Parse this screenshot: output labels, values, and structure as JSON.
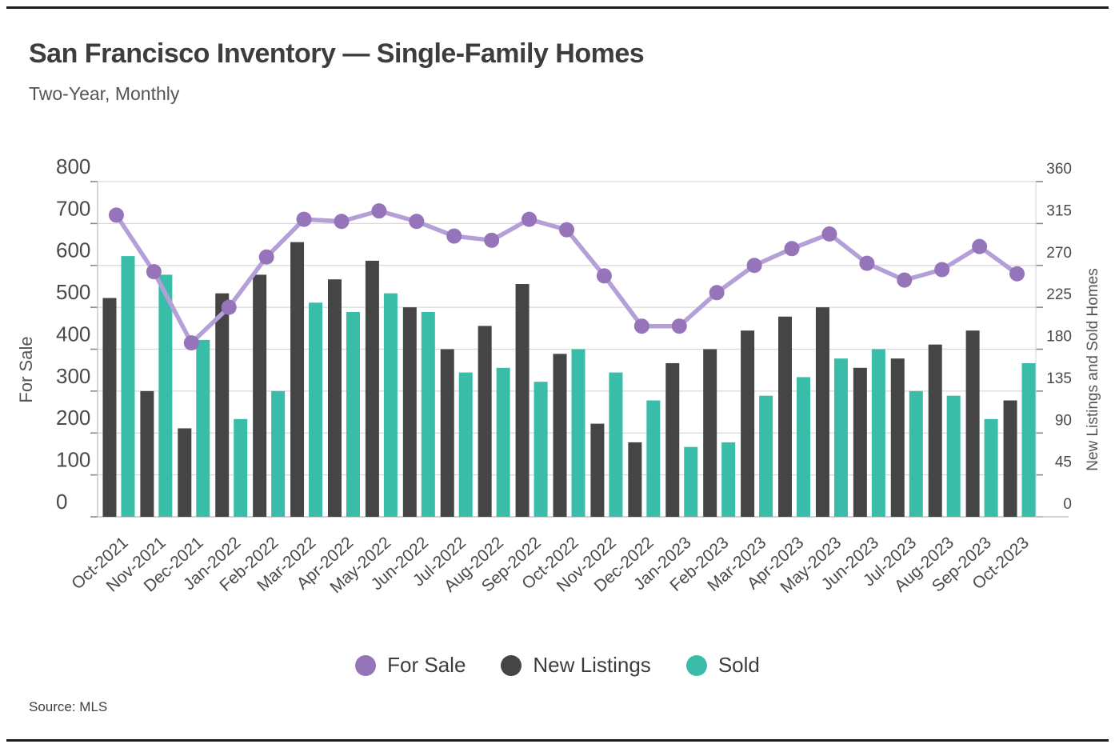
{
  "page": {
    "title": "San Francisco Inventory — Single-Family Homes",
    "subtitle": "Two-Year, Monthly",
    "source": "Source: MLS"
  },
  "legend": [
    {
      "label": "For Sale",
      "color": "#9674ba"
    },
    {
      "label": "New Listings",
      "color": "#454545"
    },
    {
      "label": "Sold",
      "color": "#39bda8"
    }
  ],
  "chart_data": {
    "type": "combo-bar-line",
    "categories": [
      "Oct-2021",
      "Nov-2021",
      "Dec-2021",
      "Jan-2022",
      "Feb-2022",
      "Mar-2022",
      "Apr-2022",
      "May-2022",
      "Jun-2022",
      "Jul-2022",
      "Aug-2022",
      "Sep-2022",
      "Oct-2022",
      "Nov-2022",
      "Dec-2022",
      "Jan-2023",
      "Feb-2023",
      "Mar-2023",
      "Apr-2023",
      "May-2023",
      "Jun-2023",
      "Jul-2023",
      "Aug-2023",
      "Sep-2023",
      "Oct-2023"
    ],
    "series": [
      {
        "name": "For Sale",
        "type": "line",
        "axis": "left",
        "color": "#9674ba",
        "line_color": "#b49fd8",
        "values": [
          720,
          585,
          415,
          500,
          620,
          710,
          705,
          730,
          705,
          670,
          660,
          710,
          685,
          575,
          455,
          455,
          535,
          600,
          640,
          675,
          605,
          565,
          590,
          645,
          580
        ]
      },
      {
        "name": "New Listings",
        "type": "bar",
        "axis": "right",
        "color": "#454545",
        "values": [
          235,
          135,
          95,
          240,
          260,
          295,
          255,
          275,
          225,
          180,
          205,
          250,
          175,
          100,
          80,
          165,
          180,
          200,
          215,
          225,
          160,
          170,
          185,
          200,
          125
        ]
      },
      {
        "name": "Sold",
        "type": "bar",
        "axis": "right",
        "color": "#39bda8",
        "values": [
          280,
          260,
          190,
          105,
          135,
          230,
          220,
          240,
          220,
          155,
          160,
          145,
          180,
          155,
          125,
          75,
          80,
          130,
          150,
          170,
          180,
          135,
          130,
          105,
          165
        ]
      }
    ],
    "left_axis": {
      "label": "For Sale",
      "min": 0,
      "max": 800,
      "tick_step": 100,
      "ticks": [
        0,
        100,
        200,
        300,
        400,
        500,
        600,
        700,
        800
      ]
    },
    "right_axis": {
      "label": "New Listings and Sold Homes",
      "min": 0,
      "max": 360,
      "tick_step": 45,
      "ticks": [
        0,
        45,
        90,
        135,
        180,
        225,
        270,
        315,
        360
      ]
    },
    "grid": true,
    "legend_position": "bottom"
  }
}
